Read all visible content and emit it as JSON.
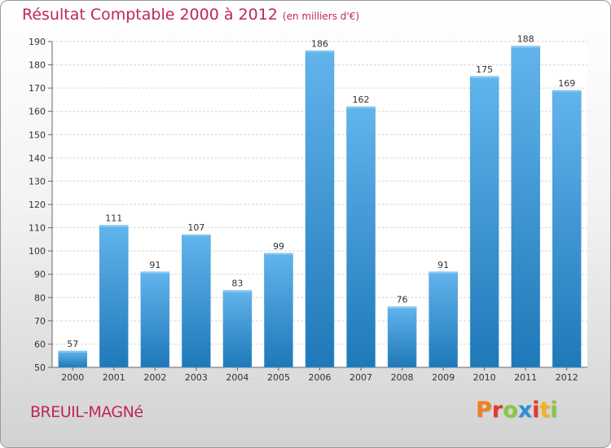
{
  "header": {
    "title": "Résultat Comptable 2000 à 2012",
    "unit": "(en milliers d'€)"
  },
  "footer": {
    "place": "BREUIL-MAGNé",
    "logo": [
      "P",
      "r",
      "o",
      "x",
      "i",
      "t",
      "i"
    ],
    "logo_colors": [
      "#f07f1e",
      "#e8352e",
      "#8cc63f",
      "#2b8fd6",
      "#e8352e",
      "#f5b31a",
      "#8cc63f"
    ]
  },
  "chart_data": {
    "type": "bar",
    "categories": [
      "2000",
      "2001",
      "2002",
      "2003",
      "2004",
      "2005",
      "2006",
      "2007",
      "2008",
      "2009",
      "2010",
      "2011",
      "2012"
    ],
    "values": [
      57,
      111,
      91,
      107,
      83,
      99,
      186,
      162,
      76,
      91,
      175,
      188,
      169
    ],
    "data_labels": [
      "57",
      "111",
      "91",
      "107",
      "83",
      "99",
      "186",
      "162",
      "76",
      "91",
      "175",
      "188",
      "169"
    ],
    "yticks": [
      50,
      60,
      70,
      80,
      90,
      100,
      110,
      120,
      130,
      140,
      150,
      160,
      170,
      180,
      190
    ],
    "ylim": [
      50,
      190
    ],
    "grid": true,
    "colors": {
      "bar_light": "#62b4ec",
      "bar_dark": "#1f78b8",
      "grid": "#d7d7d7",
      "axis": "#666666",
      "text": "#333333"
    }
  }
}
